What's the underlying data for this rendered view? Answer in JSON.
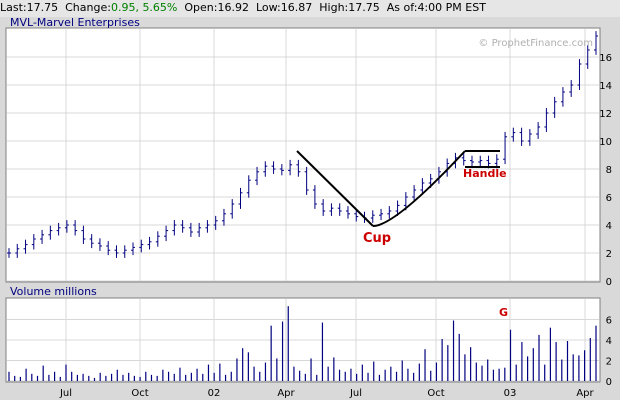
{
  "quote": {
    "last_label": "Last:",
    "last": "17.75",
    "change_label": "Change:",
    "change": "0.95, 5.65%",
    "open_label": "Open:",
    "open": "16.92",
    "low_label": "Low:",
    "low": "16.87",
    "high_label": "High:",
    "high": "17.75",
    "asof_label": "As of:",
    "asof": "4:00 PM EST"
  },
  "colors": {
    "positive": "#008000",
    "bars": "#000080",
    "annotation": "#cc0000",
    "pattern": "#000000",
    "panel_bg": "#ffffff",
    "outer_bg": "#d9d9d9"
  },
  "chart_data": [
    {
      "type": "ohlc",
      "title": "MVL-Marvel Enterprises",
      "watermark": "© ProphetFinance.com",
      "ylim": [
        0,
        18
      ],
      "yticks": [
        0,
        2,
        4,
        6,
        8,
        10,
        12,
        14,
        16
      ],
      "x_ticks": [
        "Jul",
        "Oct",
        "02",
        "Apr",
        "Jul",
        "Oct",
        "03",
        "Apr"
      ],
      "grid": true,
      "series": [
        {
          "values": [
            {
              "x": "2001-05",
              "y": 2.0
            },
            {
              "x": "2001-05",
              "y": 2.3
            },
            {
              "x": "2001-06",
              "y": 2.6
            },
            {
              "x": "2001-06",
              "y": 3.0
            },
            {
              "x": "2001-06",
              "y": 3.3
            },
            {
              "x": "2001-06",
              "y": 3.6
            },
            {
              "x": "2001-07",
              "y": 3.8
            },
            {
              "x": "2001-07",
              "y": 4.0
            },
            {
              "x": "2001-07",
              "y": 3.6
            },
            {
              "x": "2001-08",
              "y": 3.0
            },
            {
              "x": "2001-08",
              "y": 2.7
            },
            {
              "x": "2001-08",
              "y": 2.5
            },
            {
              "x": "2001-09",
              "y": 2.2
            },
            {
              "x": "2001-09",
              "y": 2.0
            },
            {
              "x": "2001-09",
              "y": 2.2
            },
            {
              "x": "2001-10",
              "y": 2.4
            },
            {
              "x": "2001-10",
              "y": 2.6
            },
            {
              "x": "2001-10",
              "y": 2.8
            },
            {
              "x": "2001-11",
              "y": 3.2
            },
            {
              "x": "2001-11",
              "y": 3.6
            },
            {
              "x": "2001-11",
              "y": 4.0
            },
            {
              "x": "2001-12",
              "y": 3.8
            },
            {
              "x": "2001-12",
              "y": 3.5
            },
            {
              "x": "2001-12",
              "y": 3.8
            },
            {
              "x": "2002-01",
              "y": 4.0
            },
            {
              "x": "2002-01",
              "y": 4.3
            },
            {
              "x": "2002-01",
              "y": 4.8
            },
            {
              "x": "2002-02",
              "y": 5.5
            },
            {
              "x": "2002-02",
              "y": 6.3
            },
            {
              "x": "2002-02",
              "y": 7.2
            },
            {
              "x": "2002-03",
              "y": 7.8
            },
            {
              "x": "2002-03",
              "y": 8.2
            },
            {
              "x": "2002-03",
              "y": 8.0
            },
            {
              "x": "2002-04",
              "y": 7.9
            },
            {
              "x": "2002-04",
              "y": 8.3
            },
            {
              "x": "2002-04",
              "y": 7.8
            },
            {
              "x": "2002-05",
              "y": 6.5
            },
            {
              "x": "2002-05",
              "y": 5.5
            },
            {
              "x": "2002-05",
              "y": 5.0
            },
            {
              "x": "2002-06",
              "y": 5.2
            },
            {
              "x": "2002-06",
              "y": 5.0
            },
            {
              "x": "2002-06",
              "y": 4.8
            },
            {
              "x": "2002-07",
              "y": 4.6
            },
            {
              "x": "2002-07",
              "y": 4.5
            },
            {
              "x": "2002-07",
              "y": 4.7
            },
            {
              "x": "2002-08",
              "y": 4.8
            },
            {
              "x": "2002-08",
              "y": 5.0
            },
            {
              "x": "2002-08",
              "y": 5.4
            },
            {
              "x": "2002-09",
              "y": 6.0
            },
            {
              "x": "2002-09",
              "y": 6.5
            },
            {
              "x": "2002-09",
              "y": 7.0
            },
            {
              "x": "2002-10",
              "y": 7.3
            },
            {
              "x": "2002-10",
              "y": 7.8
            },
            {
              "x": "2002-10",
              "y": 8.4
            },
            {
              "x": "2002-11",
              "y": 8.8
            },
            {
              "x": "2002-11",
              "y": 8.6
            },
            {
              "x": "2002-11",
              "y": 8.5
            },
            {
              "x": "2002-12",
              "y": 8.6
            },
            {
              "x": "2002-12",
              "y": 8.4
            },
            {
              "x": "2002-12",
              "y": 8.7
            },
            {
              "x": "2003-01",
              "y": 10.3
            },
            {
              "x": "2003-01",
              "y": 10.6
            },
            {
              "x": "2003-01",
              "y": 10.0
            },
            {
              "x": "2003-02",
              "y": 10.5
            },
            {
              "x": "2003-02",
              "y": 11.0
            },
            {
              "x": "2003-02",
              "y": 12.0
            },
            {
              "x": "2003-03",
              "y": 12.8
            },
            {
              "x": "2003-03",
              "y": 13.5
            },
            {
              "x": "2003-03",
              "y": 14.0
            },
            {
              "x": "2003-04",
              "y": 15.5
            },
            {
              "x": "2003-04",
              "y": 16.5
            },
            {
              "x": "2003-04",
              "y": 17.5
            }
          ]
        }
      ],
      "annotations": [
        {
          "label": "Cup",
          "color": "#cc0000"
        },
        {
          "label": "Handle",
          "color": "#cc0000"
        }
      ]
    },
    {
      "type": "bar",
      "title": "Volume  millions",
      "ylim": [
        0,
        8
      ],
      "yticks": [
        0,
        2,
        4,
        6
      ],
      "grid": true,
      "annotations": [
        {
          "label": "G",
          "color": "#cc0000"
        }
      ],
      "series": [
        {
          "values": [
            0.9,
            0.5,
            0.4,
            1.2,
            0.7,
            0.5,
            1.5,
            0.6,
            0.9,
            0.4,
            1.6,
            0.9,
            0.6,
            0.7,
            0.5,
            0.3,
            0.8,
            0.5,
            0.7,
            1.1,
            0.6,
            0.8,
            0.5,
            0.4,
            0.9,
            0.6,
            0.5,
            1.1,
            0.9,
            0.7,
            1.3,
            0.6,
            0.8,
            1.2,
            0.7,
            1.6,
            0.8,
            1.7,
            0.6,
            0.9,
            2.2,
            3.2,
            2.8,
            1.4,
            0.9,
            1.8,
            5.4,
            2.2,
            5.8,
            7.3,
            1.4,
            1.0,
            0.7,
            2.2,
            0.6,
            5.7,
            1.4,
            2.3,
            1.1,
            0.9,
            1.2,
            0.7,
            1.6,
            0.8,
            1.9,
            0.6,
            1.1,
            1.4,
            0.9,
            2.0,
            1.2,
            0.8,
            1.7,
            3.1,
            1.0,
            1.8,
            4.1,
            3.5,
            5.9,
            4.6,
            2.6,
            3.3,
            1.8,
            1.5,
            2.1,
            1.1,
            1.2,
            1.3,
            5.0,
            1.6,
            3.8,
            2.4,
            3.2,
            4.5,
            1.6,
            5.2,
            3.8,
            2.1,
            3.9,
            2.6,
            2.5,
            3.0,
            4.2,
            5.4
          ]
        }
      ]
    }
  ]
}
